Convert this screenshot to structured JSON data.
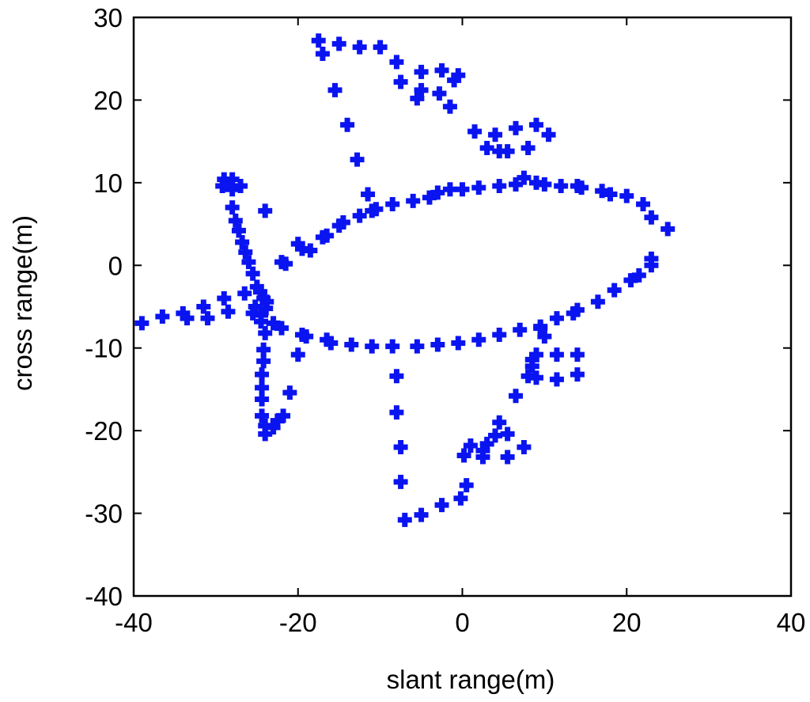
{
  "chart_data": {
    "type": "scatter",
    "title": "",
    "xlabel": "slant range(m)",
    "ylabel": "cross range(m)",
    "xlim": [
      -40,
      40
    ],
    "ylim": [
      -40,
      30
    ],
    "xticks": [
      -40,
      -20,
      0,
      20,
      40
    ],
    "yticks": [
      -40,
      -30,
      -20,
      -10,
      0,
      10,
      20,
      30
    ],
    "grid": false,
    "marker": "plus",
    "colors": {
      "marker": "#0a14f0",
      "axes": "#000000",
      "background": "#ffffff"
    },
    "series": [
      {
        "points": [
          [
            -17.5,
            27.2
          ],
          [
            -15,
            26.8
          ],
          [
            -12.5,
            26.4
          ],
          [
            -10,
            26.4
          ],
          [
            -8,
            24.6
          ],
          [
            -17,
            25.6
          ],
          [
            -15.5,
            21.2
          ],
          [
            -14,
            17.0
          ],
          [
            -12.8,
            12.8
          ],
          [
            -11.5,
            8.6
          ],
          [
            -5,
            23.4
          ],
          [
            -2.5,
            23.6
          ],
          [
            -1,
            22.4
          ],
          [
            -0.5,
            23
          ],
          [
            -7.5,
            22.2
          ],
          [
            -5,
            21.2
          ],
          [
            -5.5,
            20.2
          ],
          [
            -2.8,
            20.8
          ],
          [
            -1.5,
            19.2
          ],
          [
            1.5,
            16.2
          ],
          [
            4,
            15.8
          ],
          [
            6.5,
            16.6
          ],
          [
            9,
            17
          ],
          [
            10.5,
            15.8
          ],
          [
            3,
            14.2
          ],
          [
            4.5,
            13.8
          ],
          [
            5.5,
            13.8
          ],
          [
            8,
            14.2
          ],
          [
            -29,
            10.4
          ],
          [
            -28,
            10.4
          ],
          [
            -29.2,
            9.6
          ],
          [
            -28.6,
            9.8
          ],
          [
            -27,
            9.6
          ],
          [
            -28,
            9.2
          ],
          [
            -28,
            7.0
          ],
          [
            -27.6,
            5.4
          ],
          [
            -27.2,
            4.2
          ],
          [
            -26.8,
            2.8
          ],
          [
            -26.4,
            1.6
          ],
          [
            -26,
            0.4
          ],
          [
            -25.5,
            -1.0
          ],
          [
            -25,
            -2.6
          ],
          [
            -24.6,
            -3.2
          ],
          [
            -24.2,
            -4.0
          ],
          [
            -23.8,
            -4.4
          ],
          [
            -25.2,
            -5.0
          ],
          [
            -24.5,
            -6.0
          ],
          [
            -23.9,
            -5.2
          ],
          [
            -24,
            6.6
          ],
          [
            -22,
            0.4
          ],
          [
            -21.5,
            0.2
          ],
          [
            -20,
            2.6
          ],
          [
            -19.5,
            2.0
          ],
          [
            -18.5,
            1.8
          ],
          [
            -17,
            3.4
          ],
          [
            -16.5,
            3.6
          ],
          [
            -15,
            4.8
          ],
          [
            -14.5,
            5.2
          ],
          [
            -12.5,
            6.0
          ],
          [
            -11,
            6.6
          ],
          [
            -10.5,
            6.8
          ],
          [
            -8.5,
            7.4
          ],
          [
            -6,
            7.8
          ],
          [
            -4,
            8.2
          ],
          [
            -3,
            8.8
          ],
          [
            -1.5,
            9.2
          ],
          [
            0,
            9.2
          ],
          [
            2,
            9.4
          ],
          [
            4.5,
            9.6
          ],
          [
            6.5,
            9.8
          ],
          [
            7.5,
            10.6
          ],
          [
            9,
            10.0
          ],
          [
            10,
            9.8
          ],
          [
            12,
            9.6
          ],
          [
            14,
            9.6
          ],
          [
            14.5,
            9.4
          ],
          [
            17,
            9.0
          ],
          [
            18,
            8.6
          ],
          [
            20,
            8.4
          ],
          [
            22,
            7.4
          ],
          [
            23,
            5.8
          ],
          [
            25,
            4.4
          ],
          [
            23,
            0.8
          ],
          [
            23,
            0.0
          ],
          [
            21.5,
            -1.2
          ],
          [
            20.5,
            -1.8
          ],
          [
            18.5,
            -3.0
          ],
          [
            16.5,
            -4.4
          ],
          [
            14,
            -5.4
          ],
          [
            13.5,
            -5.8
          ],
          [
            11.5,
            -6.4
          ],
          [
            9.5,
            -7.4
          ],
          [
            7,
            -7.8
          ],
          [
            4.5,
            -8.4
          ],
          [
            2,
            -9.0
          ],
          [
            -0.5,
            -9.4
          ],
          [
            -3,
            -9.6
          ],
          [
            -5.5,
            -9.8
          ],
          [
            -8.5,
            -9.8
          ],
          [
            -11,
            -9.8
          ],
          [
            -13.5,
            -9.6
          ],
          [
            -16,
            -9.4
          ],
          [
            -16.5,
            -9.0
          ],
          [
            -19,
            -8.6
          ],
          [
            -19.5,
            -8.4
          ],
          [
            -20,
            -10.8
          ],
          [
            -22,
            -7.6
          ],
          [
            -23,
            -7.0
          ],
          [
            -24.5,
            -6.8
          ],
          [
            -39,
            -7.0
          ],
          [
            -36.5,
            -6.2
          ],
          [
            -34,
            -5.8
          ],
          [
            -33.5,
            -6.4
          ],
          [
            -31.5,
            -5.0
          ],
          [
            -31,
            -6.4
          ],
          [
            -29,
            -4.0
          ],
          [
            -28.5,
            -5.6
          ],
          [
            -26.5,
            -3.4
          ],
          [
            -25.5,
            -5.8
          ],
          [
            -24,
            -8.2
          ],
          [
            -24.2,
            -10.2
          ],
          [
            -24.2,
            -11.6
          ],
          [
            -24.4,
            -13.2
          ],
          [
            -24.4,
            -14.8
          ],
          [
            -24.4,
            -16.2
          ],
          [
            -24.4,
            -18.2
          ],
          [
            -24,
            -19.4
          ],
          [
            -24,
            -20.4
          ],
          [
            -23,
            -19.6
          ],
          [
            -22.5,
            -18.8
          ],
          [
            -21.8,
            -18.2
          ],
          [
            -21,
            -15.4
          ],
          [
            -8,
            -13.4
          ],
          [
            -8,
            -17.8
          ],
          [
            -7.5,
            -22
          ],
          [
            -7.5,
            -26.2
          ],
          [
            -7,
            -30.8
          ],
          [
            -5,
            -30.2
          ],
          [
            -2.5,
            -29.0
          ],
          [
            -0.2,
            -28.2
          ],
          [
            0.5,
            -26.6
          ],
          [
            0.2,
            -23.0
          ],
          [
            1,
            -21.8
          ],
          [
            2.5,
            -23.2
          ],
          [
            2.5,
            -22.4
          ],
          [
            3,
            -21.6
          ],
          [
            4,
            -20.6
          ],
          [
            4.5,
            -19.0
          ],
          [
            5.5,
            -20.4
          ],
          [
            5.5,
            -23.2
          ],
          [
            7.5,
            -22.0
          ],
          [
            6.5,
            -15.8
          ],
          [
            8,
            -13.4
          ],
          [
            8.5,
            -12.2
          ],
          [
            8.5,
            -11.4
          ],
          [
            9,
            -10.8
          ],
          [
            10,
            -8.6
          ],
          [
            9.5,
            -7.6
          ],
          [
            11.5,
            -10.8
          ],
          [
            14,
            -10.8
          ],
          [
            11.5,
            -13.8
          ],
          [
            14,
            -13.2
          ],
          [
            9,
            -13.6
          ]
        ]
      }
    ]
  }
}
